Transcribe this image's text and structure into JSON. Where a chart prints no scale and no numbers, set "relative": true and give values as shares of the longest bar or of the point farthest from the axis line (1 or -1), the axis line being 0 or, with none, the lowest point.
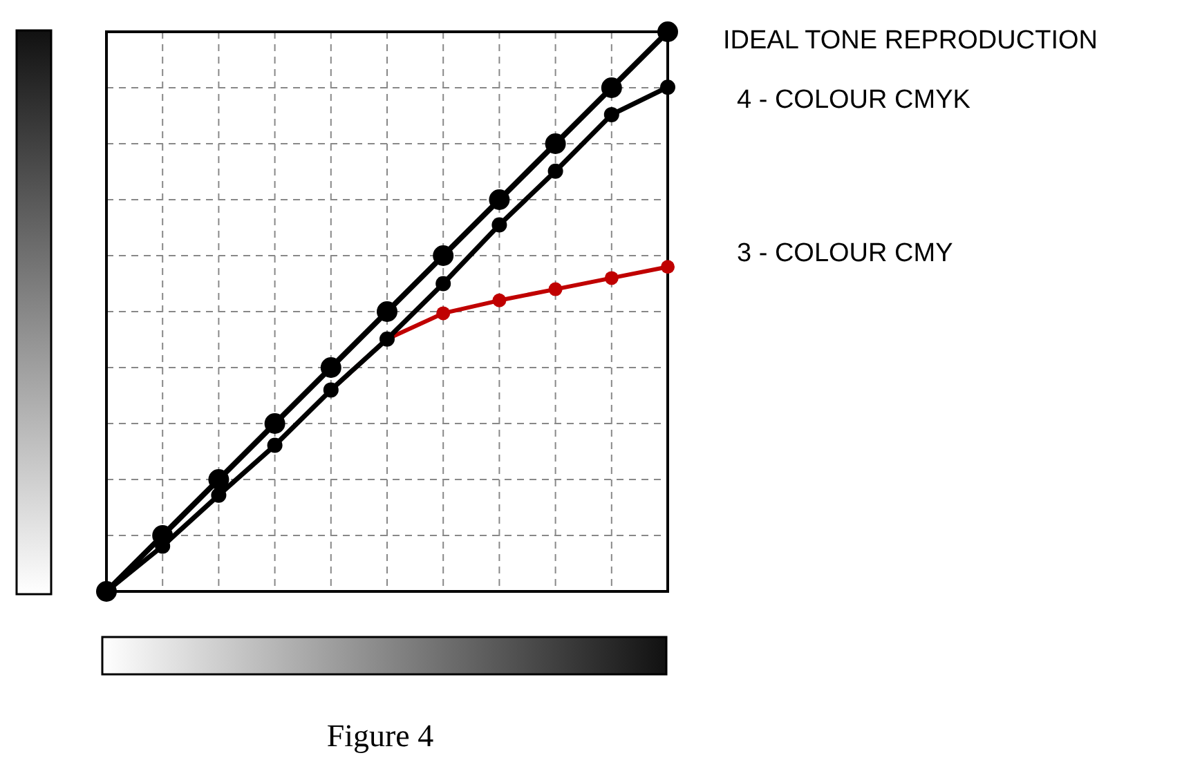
{
  "chart_data": {
    "type": "line",
    "relative": true,
    "categories": [
      null,
      null,
      null,
      null,
      null,
      null,
      null,
      null,
      null,
      null,
      null
    ],
    "grid": true,
    "marker": "circle",
    "line_style": "solid",
    "series": [
      {
        "name": "3 - COLOUR CMY",
        "color": "#c00000",
        "values": [
          null,
          null,
          null,
          null,
          0.36,
          0.451,
          0.497,
          0.52,
          0.54,
          0.56,
          0.58
        ]
      },
      {
        "name": "4 - COLOUR CMYK",
        "color": "#000000",
        "values": [
          0,
          0.081,
          0.172,
          0.261,
          0.36,
          0.451,
          0.55,
          0.655,
          0.751,
          0.852,
          0.901
        ]
      },
      {
        "name": "IDEAL TONE REPRODUCTION",
        "color": "#000000",
        "values": [
          0,
          0.1,
          0.2,
          0.3,
          0.4,
          0.5,
          0.6,
          0.7,
          0.8,
          0.9,
          1.0
        ]
      }
    ],
    "annotations": [
      "Figure 4"
    ]
  }
}
